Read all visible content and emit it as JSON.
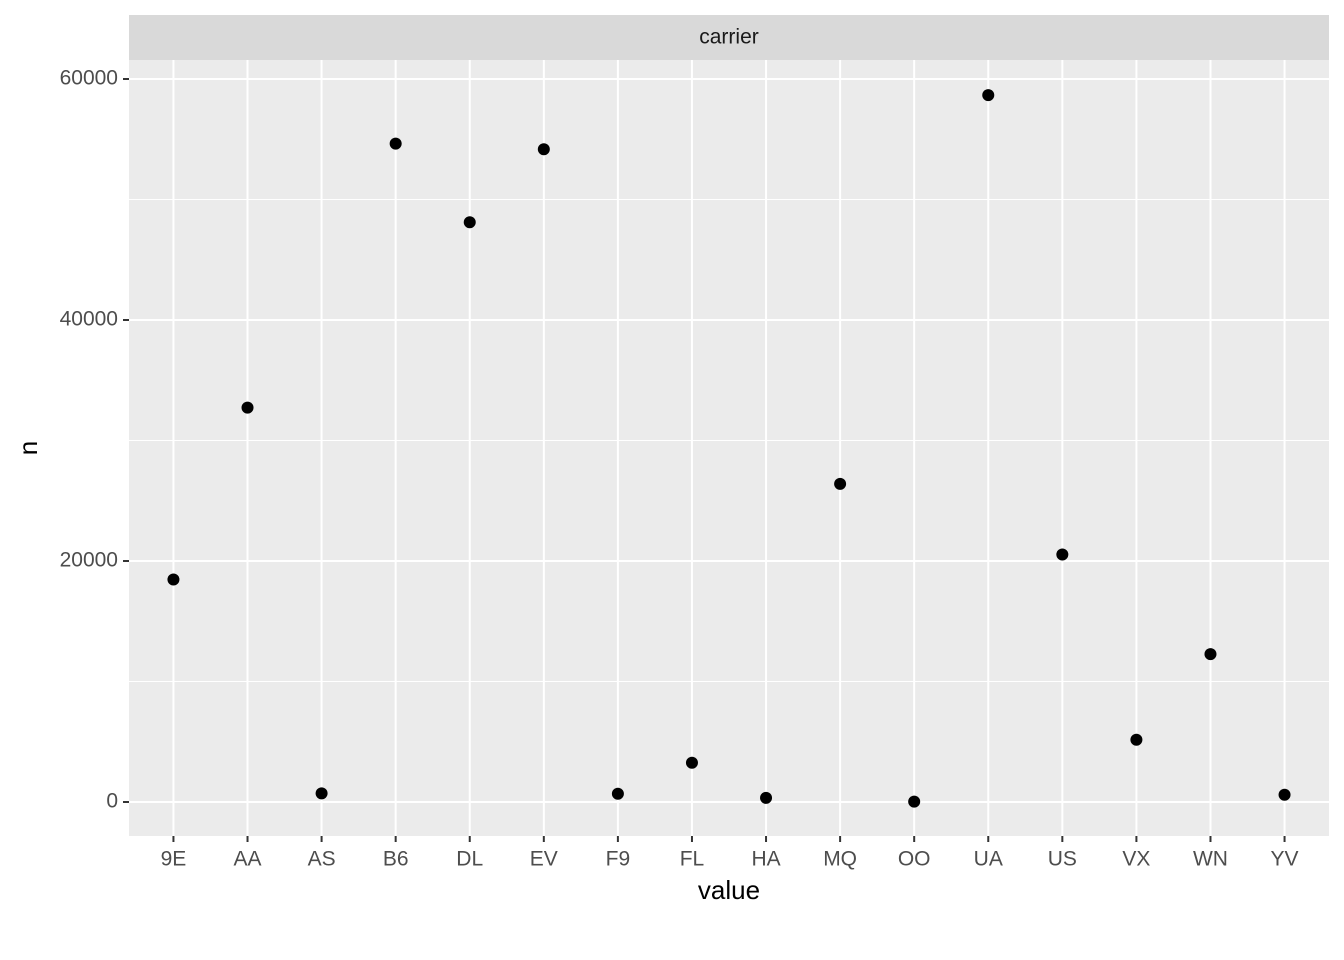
{
  "chart_data": {
    "type": "scatter",
    "facet_label": "carrier",
    "x_label": "value",
    "y_label": "n",
    "categories": [
      "9E",
      "AA",
      "AS",
      "B6",
      "DL",
      "EV",
      "F9",
      "FL",
      "HA",
      "MQ",
      "OO",
      "UA",
      "US",
      "VX",
      "WN",
      "YV"
    ],
    "values": [
      18460,
      32729,
      714,
      54635,
      48110,
      54173,
      685,
      3260,
      342,
      26397,
      32,
      58665,
      20536,
      5162,
      12275,
      601
    ],
    "color": "#000000",
    "ylim": [
      -2822,
      61577
    ],
    "yticks": [
      0,
      20000,
      40000,
      60000
    ],
    "y_minor_grid": [
      10000,
      30000,
      50000
    ],
    "grid": true
  }
}
